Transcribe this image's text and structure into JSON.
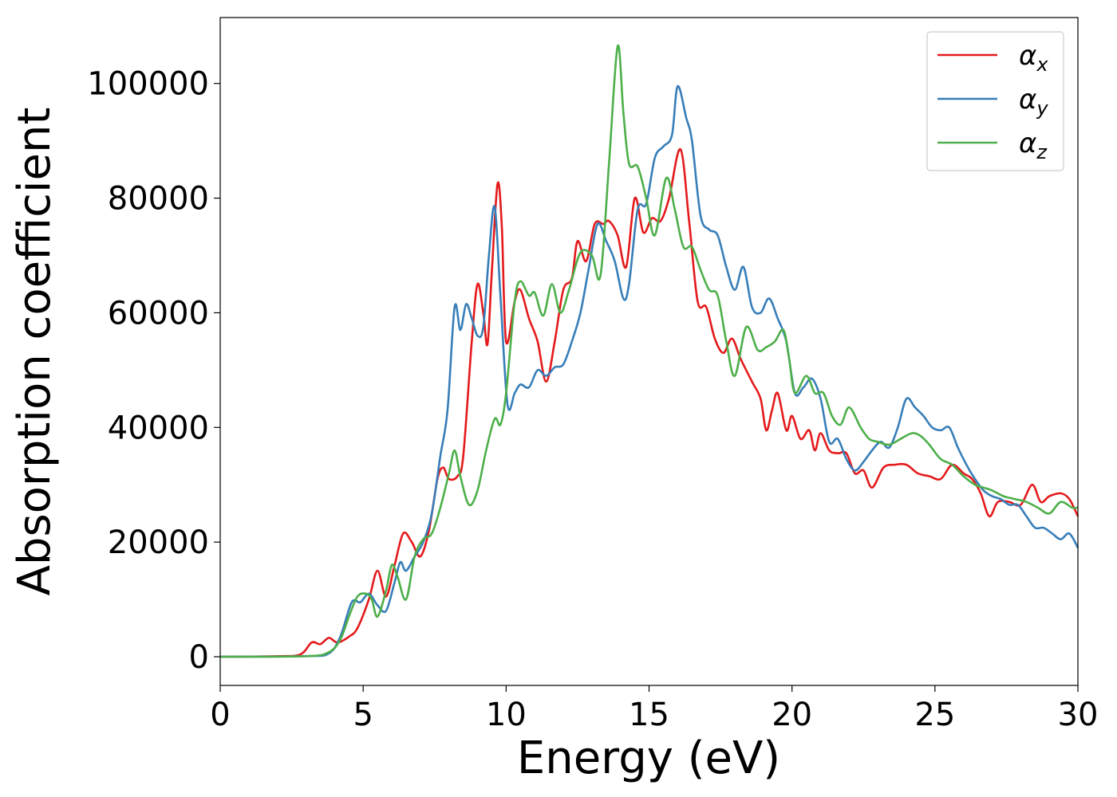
{
  "chart_data": {
    "type": "line",
    "title": "",
    "xlabel": "Energy (eV)",
    "ylabel": "Absorption coefficient",
    "xlim": [
      0,
      30
    ],
    "ylim": [
      -5000,
      111500
    ],
    "xticks": [
      0,
      5,
      10,
      15,
      20,
      25,
      30
    ],
    "xtick_labels": [
      "0",
      "5",
      "10",
      "15",
      "20",
      "25",
      "30"
    ],
    "yticks": [
      0,
      20000,
      40000,
      60000,
      80000,
      100000
    ],
    "ytick_labels": [
      "0",
      "20000",
      "40000",
      "60000",
      "80000",
      "100000"
    ],
    "grid": false,
    "legend_position": "top-right",
    "series": [
      {
        "name": "α",
        "subscript": "x",
        "color": "#e41a1c",
        "points": [
          [
            0,
            0
          ],
          [
            2,
            100
          ],
          [
            2.8,
            400
          ],
          [
            3.2,
            2500
          ],
          [
            3.5,
            2200
          ],
          [
            3.8,
            3300
          ],
          [
            4.1,
            2500
          ],
          [
            4.5,
            3500
          ],
          [
            4.8,
            5000
          ],
          [
            5.2,
            10000
          ],
          [
            5.5,
            15000
          ],
          [
            5.8,
            10500
          ],
          [
            6.1,
            16000
          ],
          [
            6.4,
            21500
          ],
          [
            6.7,
            20000
          ],
          [
            7.0,
            17500
          ],
          [
            7.3,
            22000
          ],
          [
            7.6,
            31000
          ],
          [
            7.8,
            33000
          ],
          [
            8.0,
            31000
          ],
          [
            8.3,
            31500
          ],
          [
            8.5,
            35000
          ],
          [
            8.8,
            55000
          ],
          [
            9.0,
            65000
          ],
          [
            9.2,
            60000
          ],
          [
            9.35,
            54500
          ],
          [
            9.5,
            67000
          ],
          [
            9.7,
            82500
          ],
          [
            9.85,
            75000
          ],
          [
            10.0,
            55000
          ],
          [
            10.3,
            62000
          ],
          [
            10.5,
            64000
          ],
          [
            10.8,
            59000
          ],
          [
            11.1,
            55000
          ],
          [
            11.4,
            48000
          ],
          [
            11.7,
            55000
          ],
          [
            12.0,
            64000
          ],
          [
            12.3,
            66000
          ],
          [
            12.5,
            72500
          ],
          [
            12.8,
            69000
          ],
          [
            13.1,
            75500
          ],
          [
            13.4,
            75500
          ],
          [
            13.6,
            76000
          ],
          [
            13.9,
            73500
          ],
          [
            14.2,
            68000
          ],
          [
            14.5,
            80000
          ],
          [
            14.8,
            74000
          ],
          [
            15.1,
            76500
          ],
          [
            15.4,
            76000
          ],
          [
            15.7,
            80000
          ],
          [
            16.1,
            88500
          ],
          [
            16.4,
            76000
          ],
          [
            16.7,
            62000
          ],
          [
            17.0,
            61000
          ],
          [
            17.3,
            55500
          ],
          [
            17.6,
            53000
          ],
          [
            17.9,
            55500
          ],
          [
            18.2,
            52000
          ],
          [
            18.6,
            48000
          ],
          [
            18.9,
            45000
          ],
          [
            19.1,
            39500
          ],
          [
            19.3,
            43000
          ],
          [
            19.5,
            46000
          ],
          [
            19.8,
            39500
          ],
          [
            20.0,
            42000
          ],
          [
            20.3,
            38000
          ],
          [
            20.6,
            39500
          ],
          [
            20.8,
            36000
          ],
          [
            21.0,
            39000
          ],
          [
            21.3,
            36000
          ],
          [
            21.6,
            35500
          ],
          [
            21.9,
            35500
          ],
          [
            22.2,
            32000
          ],
          [
            22.5,
            32500
          ],
          [
            22.8,
            29500
          ],
          [
            23.2,
            33000
          ],
          [
            23.6,
            33500
          ],
          [
            24.0,
            33500
          ],
          [
            24.4,
            32000
          ],
          [
            24.8,
            31500
          ],
          [
            25.2,
            31000
          ],
          [
            25.6,
            33500
          ],
          [
            26.0,
            32000
          ],
          [
            26.3,
            31000
          ],
          [
            26.6,
            28500
          ],
          [
            26.9,
            24500
          ],
          [
            27.2,
            27000
          ],
          [
            27.6,
            27000
          ],
          [
            28.0,
            26500
          ],
          [
            28.4,
            30000
          ],
          [
            28.7,
            27000
          ],
          [
            29.0,
            28000
          ],
          [
            29.4,
            28500
          ],
          [
            29.7,
            27500
          ],
          [
            30,
            24500
          ]
        ]
      },
      {
        "name": "α",
        "subscript": "y",
        "color": "#377eb8",
        "points": [
          [
            0,
            0
          ],
          [
            3,
            100
          ],
          [
            3.8,
            600
          ],
          [
            4.2,
            3500
          ],
          [
            4.6,
            9500
          ],
          [
            4.9,
            9500
          ],
          [
            5.2,
            11000
          ],
          [
            5.5,
            9000
          ],
          [
            5.8,
            8000
          ],
          [
            6.1,
            13000
          ],
          [
            6.3,
            16500
          ],
          [
            6.5,
            15000
          ],
          [
            6.8,
            17500
          ],
          [
            7.1,
            20000
          ],
          [
            7.4,
            25000
          ],
          [
            7.7,
            35000
          ],
          [
            7.95,
            43000
          ],
          [
            8.2,
            61000
          ],
          [
            8.4,
            57000
          ],
          [
            8.6,
            61500
          ],
          [
            8.8,
            59000
          ],
          [
            9.0,
            56000
          ],
          [
            9.2,
            57500
          ],
          [
            9.4,
            70000
          ],
          [
            9.6,
            78500
          ],
          [
            9.8,
            63000
          ],
          [
            10.05,
            44000
          ],
          [
            10.3,
            46000
          ],
          [
            10.5,
            47500
          ],
          [
            10.8,
            47000
          ],
          [
            11.1,
            50000
          ],
          [
            11.4,
            49000
          ],
          [
            11.7,
            50500
          ],
          [
            12.0,
            51000
          ],
          [
            12.3,
            55000
          ],
          [
            12.6,
            60000
          ],
          [
            12.9,
            68000
          ],
          [
            13.2,
            75500
          ],
          [
            13.5,
            72500
          ],
          [
            13.8,
            69000
          ],
          [
            14.1,
            62500
          ],
          [
            14.3,
            65000
          ],
          [
            14.6,
            78000
          ],
          [
            14.9,
            79000
          ],
          [
            15.2,
            87000
          ],
          [
            15.5,
            89000
          ],
          [
            15.8,
            91000
          ],
          [
            16.0,
            99500
          ],
          [
            16.3,
            94000
          ],
          [
            16.5,
            90000
          ],
          [
            16.8,
            77000
          ],
          [
            17.1,
            74500
          ],
          [
            17.4,
            73500
          ],
          [
            17.7,
            68000
          ],
          [
            18.0,
            64000
          ],
          [
            18.3,
            68000
          ],
          [
            18.6,
            61000
          ],
          [
            18.9,
            60000
          ],
          [
            19.2,
            62500
          ],
          [
            19.5,
            59000
          ],
          [
            19.8,
            55000
          ],
          [
            20.1,
            46000
          ],
          [
            20.4,
            47000
          ],
          [
            20.7,
            48500
          ],
          [
            21.0,
            45000
          ],
          [
            21.3,
            37500
          ],
          [
            21.6,
            38000
          ],
          [
            21.9,
            34500
          ],
          [
            22.2,
            32500
          ],
          [
            22.5,
            34000
          ],
          [
            22.8,
            36000
          ],
          [
            23.1,
            37500
          ],
          [
            23.4,
            36500
          ],
          [
            23.7,
            40000
          ],
          [
            24.0,
            45000
          ],
          [
            24.3,
            43500
          ],
          [
            24.6,
            42000
          ],
          [
            24.9,
            40000
          ],
          [
            25.2,
            39500
          ],
          [
            25.5,
            40000
          ],
          [
            25.8,
            36500
          ],
          [
            26.1,
            33500
          ],
          [
            26.4,
            31000
          ],
          [
            26.7,
            29000
          ],
          [
            27.0,
            28000
          ],
          [
            27.3,
            27500
          ],
          [
            27.6,
            26500
          ],
          [
            27.9,
            26500
          ],
          [
            28.2,
            24500
          ],
          [
            28.5,
            22500
          ],
          [
            28.8,
            22500
          ],
          [
            29.1,
            21500
          ],
          [
            29.4,
            20500
          ],
          [
            29.7,
            21500
          ],
          [
            30,
            19000
          ]
        ]
      },
      {
        "name": "α",
        "subscript": "z",
        "color": "#4daf4a",
        "points": [
          [
            0,
            0
          ],
          [
            3,
            100
          ],
          [
            3.8,
            800
          ],
          [
            4.2,
            3000
          ],
          [
            4.5,
            7000
          ],
          [
            4.8,
            10500
          ],
          [
            5.1,
            11000
          ],
          [
            5.3,
            10000
          ],
          [
            5.5,
            7000
          ],
          [
            5.8,
            11500
          ],
          [
            6.0,
            16000
          ],
          [
            6.2,
            14000
          ],
          [
            6.5,
            10000
          ],
          [
            6.8,
            17500
          ],
          [
            7.1,
            20500
          ],
          [
            7.4,
            21500
          ],
          [
            7.7,
            26000
          ],
          [
            8.0,
            32000
          ],
          [
            8.2,
            36000
          ],
          [
            8.4,
            31500
          ],
          [
            8.7,
            26500
          ],
          [
            9.0,
            29000
          ],
          [
            9.3,
            36000
          ],
          [
            9.6,
            41500
          ],
          [
            9.8,
            40500
          ],
          [
            10.0,
            46000
          ],
          [
            10.3,
            62000
          ],
          [
            10.5,
            65500
          ],
          [
            10.8,
            63000
          ],
          [
            11.0,
            63500
          ],
          [
            11.3,
            59500
          ],
          [
            11.6,
            65000
          ],
          [
            11.9,
            60000
          ],
          [
            12.2,
            64000
          ],
          [
            12.6,
            70500
          ],
          [
            13.0,
            70000
          ],
          [
            13.3,
            66500
          ],
          [
            13.6,
            86000
          ],
          [
            13.9,
            106500
          ],
          [
            14.1,
            95000
          ],
          [
            14.3,
            86000
          ],
          [
            14.6,
            85500
          ],
          [
            14.9,
            80000
          ],
          [
            15.2,
            73500
          ],
          [
            15.6,
            83500
          ],
          [
            15.9,
            78000
          ],
          [
            16.2,
            71500
          ],
          [
            16.5,
            71500
          ],
          [
            16.8,
            67500
          ],
          [
            17.1,
            64000
          ],
          [
            17.4,
            63000
          ],
          [
            17.7,
            55000
          ],
          [
            18.0,
            49000
          ],
          [
            18.4,
            57500
          ],
          [
            18.8,
            53500
          ],
          [
            19.1,
            54000
          ],
          [
            19.4,
            55000
          ],
          [
            19.7,
            57000
          ],
          [
            19.9,
            52000
          ],
          [
            20.1,
            46000
          ],
          [
            20.5,
            49000
          ],
          [
            20.8,
            46000
          ],
          [
            21.1,
            46000
          ],
          [
            21.4,
            42000
          ],
          [
            21.7,
            40500
          ],
          [
            22.0,
            43500
          ],
          [
            22.4,
            40000
          ],
          [
            22.7,
            38000
          ],
          [
            23.0,
            37500
          ],
          [
            23.4,
            37000
          ],
          [
            23.8,
            38000
          ],
          [
            24.2,
            39000
          ],
          [
            24.5,
            38500
          ],
          [
            24.8,
            37000
          ],
          [
            25.2,
            34500
          ],
          [
            25.6,
            33500
          ],
          [
            26.0,
            31500
          ],
          [
            26.4,
            30000
          ],
          [
            26.7,
            29500
          ],
          [
            27.0,
            29000
          ],
          [
            27.4,
            28000
          ],
          [
            27.8,
            27500
          ],
          [
            28.2,
            27000
          ],
          [
            28.6,
            26000
          ],
          [
            29.0,
            25000
          ],
          [
            29.4,
            27000
          ],
          [
            29.8,
            26000
          ],
          [
            30,
            26000
          ]
        ]
      }
    ]
  }
}
